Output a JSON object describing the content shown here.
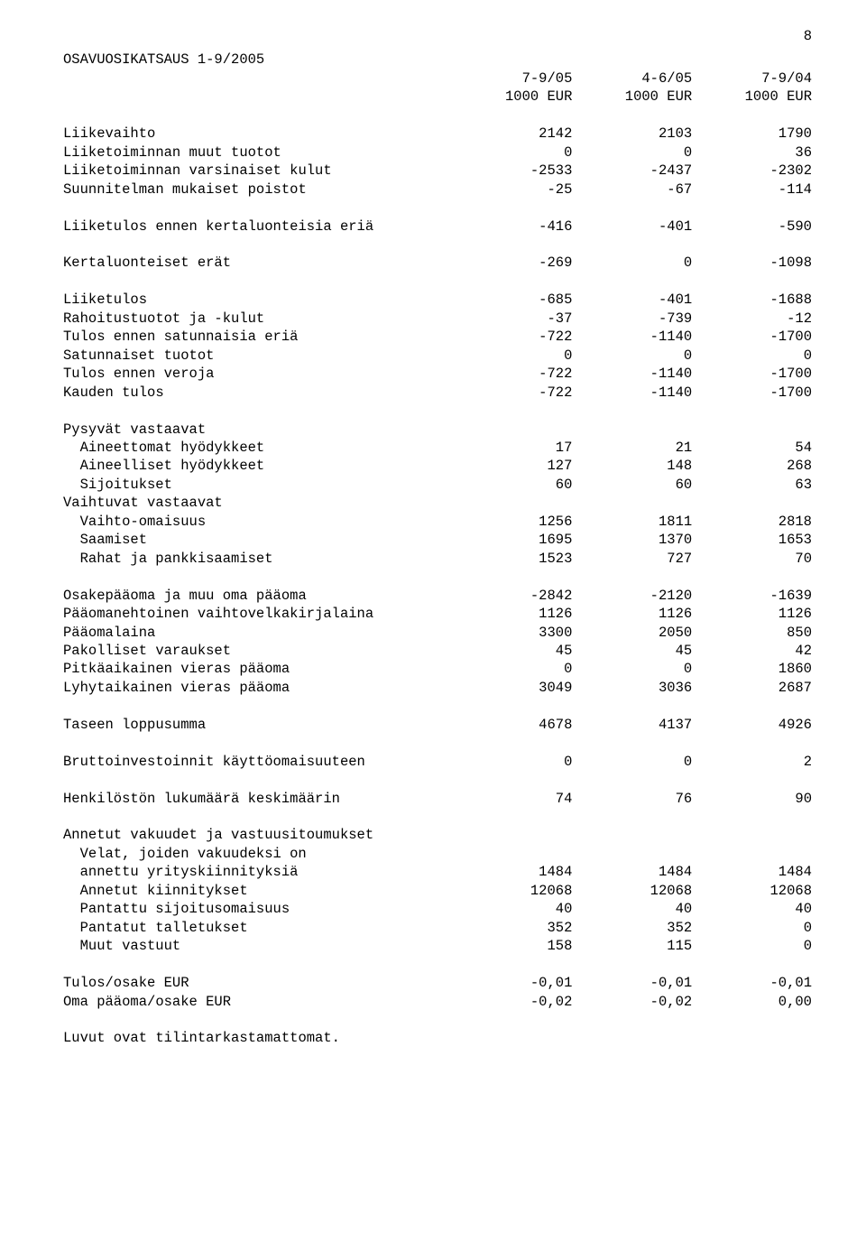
{
  "page_number": "8",
  "title": "OSAVUOSIKATSAUS 1-9/2005",
  "col_headers_row1": {
    "c1": "7-9/05",
    "c2": "4-6/05",
    "c3": "7-9/04"
  },
  "col_headers_row2": {
    "c1": "1000 EUR",
    "c2": "1000 EUR",
    "c3": "1000 EUR"
  },
  "rows": {
    "liikevaihto": {
      "label": "Liikevaihto",
      "c1": "2142",
      "c2": "2103",
      "c3": "1790"
    },
    "muut_tuotot": {
      "label": "Liiketoiminnan muut tuotot",
      "c1": "0",
      "c2": "0",
      "c3": "36"
    },
    "varsinaiset_kulut": {
      "label": "Liiketoiminnan varsinaiset kulut",
      "c1": "-2533",
      "c2": "-2437",
      "c3": "-2302"
    },
    "poistot": {
      "label": "Suunnitelman mukaiset poistot",
      "c1": "-25",
      "c2": "-67",
      "c3": "-114"
    },
    "liiketulos_ennen": {
      "label": "Liiketulos ennen kertaluonteisia eriä",
      "c1": "-416",
      "c2": "-401",
      "c3": "-590"
    },
    "kertaluonteiset": {
      "label": "Kertaluonteiset erät",
      "c1": "-269",
      "c2": "0",
      "c3": "-1098"
    },
    "liiketulos": {
      "label": "Liiketulos",
      "c1": "-685",
      "c2": "-401",
      "c3": "-1688"
    },
    "rahoitustuotot": {
      "label": "Rahoitustuotot ja -kulut",
      "c1": "-37",
      "c2": "-739",
      "c3": "-12"
    },
    "tulos_ennen_sat": {
      "label": "Tulos ennen satunnaisia eriä",
      "c1": "-722",
      "c2": "-1140",
      "c3": "-1700"
    },
    "satunnaiset": {
      "label": "Satunnaiset tuotot",
      "c1": "0",
      "c2": "0",
      "c3": "0"
    },
    "tulos_ennen_veroja": {
      "label": "Tulos ennen veroja",
      "c1": "-722",
      "c2": "-1140",
      "c3": "-1700"
    },
    "kauden_tulos": {
      "label": "Kauden tulos",
      "c1": "-722",
      "c2": "-1140",
      "c3": "-1700"
    },
    "pysyvat": {
      "label": "Pysyvät vastaavat"
    },
    "aineettomat": {
      "label": "Aineettomat hyödykkeet",
      "c1": "17",
      "c2": "21",
      "c3": "54"
    },
    "aineelliset": {
      "label": "Aineelliset hyödykkeet",
      "c1": "127",
      "c2": "148",
      "c3": "268"
    },
    "sijoitukset": {
      "label": "Sijoitukset",
      "c1": "60",
      "c2": "60",
      "c3": "63"
    },
    "vaihtuvat": {
      "label": "Vaihtuvat vastaavat"
    },
    "vaihto_omaisuus": {
      "label": "Vaihto-omaisuus",
      "c1": "1256",
      "c2": "1811",
      "c3": "2818"
    },
    "saamiset": {
      "label": "Saamiset",
      "c1": "1695",
      "c2": "1370",
      "c3": "1653"
    },
    "rahat": {
      "label": "Rahat ja pankkisaamiset",
      "c1": "1523",
      "c2": "727",
      "c3": "70"
    },
    "osakepaaoma": {
      "label": "Osakepääoma ja muu oma pääoma",
      "c1": "-2842",
      "c2": "-2120",
      "c3": "-1639"
    },
    "paaomanehtoinen": {
      "label": "Pääomanehtoinen vaihtovelkakirjalaina",
      "c1": "1126",
      "c2": "1126",
      "c3": "1126"
    },
    "paaomalaina": {
      "label": "Pääomalaina",
      "c1": "3300",
      "c2": "2050",
      "c3": "850"
    },
    "pakolliset": {
      "label": "Pakolliset varaukset",
      "c1": "45",
      "c2": "45",
      "c3": "42"
    },
    "pitkaaikainen": {
      "label": "Pitkäaikainen vieras pääoma",
      "c1": "0",
      "c2": "0",
      "c3": "1860"
    },
    "lyhytaikainen": {
      "label": "Lyhytaikainen vieras pääoma",
      "c1": "3049",
      "c2": "3036",
      "c3": "2687"
    },
    "taseen_loppu": {
      "label": "Taseen loppusumma",
      "c1": "4678",
      "c2": "4137",
      "c3": "4926"
    },
    "bruttoinvestoinnit": {
      "label": "Bruttoinvestoinnit käyttöomaisuuteen",
      "c1": "0",
      "c2": "0",
      "c3": "2"
    },
    "henkilosto": {
      "label": "Henkilöstön lukumäärä keskimäärin",
      "c1": "74",
      "c2": "76",
      "c3": "90"
    },
    "annetut_vakuudet": {
      "label": "Annetut vakuudet ja vastuusitoumukset"
    },
    "velat_joiden": {
      "label": "Velat, joiden vakuudeksi on"
    },
    "annettu_yritys": {
      "label": "annettu yrityskiinnityksiä",
      "c1": "1484",
      "c2": "1484",
      "c3": "1484"
    },
    "annetut_kiinnitykset": {
      "label": "Annetut kiinnitykset",
      "c1": "12068",
      "c2": "12068",
      "c3": "12068"
    },
    "pantattu_sijoitus": {
      "label": "Pantattu sijoitusomaisuus",
      "c1": "40",
      "c2": "40",
      "c3": "40"
    },
    "pantatut_talletukset": {
      "label": "Pantatut talletukset",
      "c1": "352",
      "c2": "352",
      "c3": "0"
    },
    "muut_vastuut": {
      "label": "Muut vastuut",
      "c1": "158",
      "c2": "115",
      "c3": "0"
    },
    "tulos_osake": {
      "label": "Tulos/osake EUR",
      "c1": "-0,01",
      "c2": "-0,01",
      "c3": "-0,01"
    },
    "oma_paaoma_osake": {
      "label": "Oma pääoma/osake EUR",
      "c1": "-0,02",
      "c2": "-0,02",
      "c3": "0,00"
    }
  },
  "footer": "Luvut ovat tilintarkastamattomat."
}
